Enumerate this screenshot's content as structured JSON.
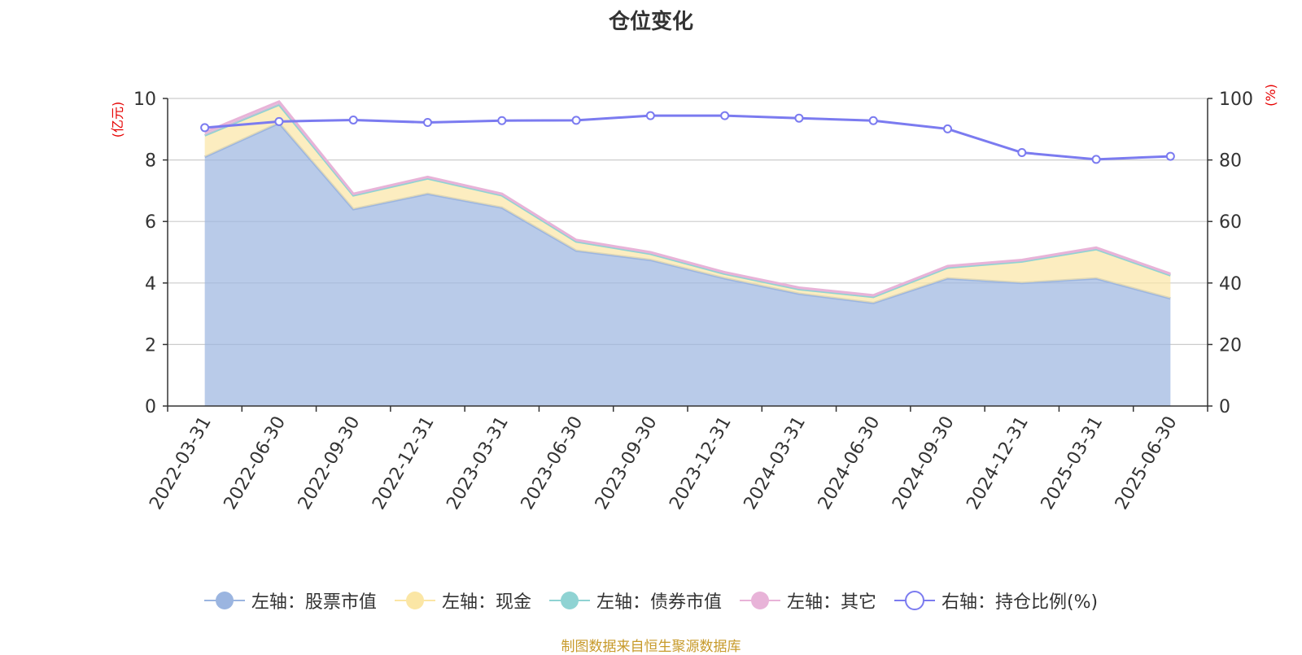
{
  "chart_data": {
    "type": "area",
    "title": "仓位变化",
    "left_axis_unit": "(亿元)",
    "right_axis_unit": "(%)",
    "categories": [
      "2022-03-31",
      "2022-06-30",
      "2022-09-30",
      "2022-12-31",
      "2023-03-31",
      "2023-06-30",
      "2023-09-30",
      "2023-12-31",
      "2024-03-31",
      "2024-06-30",
      "2024-09-30",
      "2024-12-31",
      "2025-03-31",
      "2025-06-30"
    ],
    "ylim_left": [
      0,
      10
    ],
    "yticks_left": [
      "0",
      "2",
      "4",
      "6",
      "8",
      "10"
    ],
    "ylim_right": [
      0,
      100
    ],
    "yticks_right": [
      "0",
      "20",
      "40",
      "60",
      "80",
      "100"
    ],
    "grid": true,
    "legend_position": "bottom",
    "series": [
      {
        "name": "左轴：股票市值",
        "axis": "left",
        "kind": "stacked-area",
        "color": "#9bb5e0",
        "values": [
          8.1,
          9.2,
          6.4,
          6.9,
          6.45,
          5.05,
          4.75,
          4.15,
          3.65,
          3.35,
          4.15,
          4.0,
          4.15,
          3.5
        ]
      },
      {
        "name": "左轴：现金",
        "axis": "left",
        "kind": "stacked-area",
        "color": "#fbe6a5",
        "values": [
          0.7,
          0.6,
          0.45,
          0.5,
          0.4,
          0.3,
          0.2,
          0.15,
          0.15,
          0.2,
          0.35,
          0.7,
          0.95,
          0.75
        ]
      },
      {
        "name": "左轴：债券市值",
        "axis": "left",
        "kind": "stacked-area",
        "color": "#8fd3d3",
        "values": [
          0,
          0,
          0,
          0,
          0,
          0,
          0,
          0,
          0,
          0,
          0,
          0,
          0,
          0
        ]
      },
      {
        "name": "左轴：其它",
        "axis": "left",
        "kind": "stacked-area",
        "color": "#e8b3d8",
        "values": [
          0.1,
          0.1,
          0.05,
          0.05,
          0.05,
          0.05,
          0.05,
          0.05,
          0.05,
          0.05,
          0.05,
          0.05,
          0.05,
          0.05
        ]
      },
      {
        "name": "右轴：持仓比例(%)",
        "axis": "right",
        "kind": "line",
        "color": "#7b7bf0",
        "values": [
          90.5,
          92.5,
          93.0,
          92.2,
          92.8,
          92.9,
          94.4,
          94.4,
          93.6,
          92.8,
          90.1,
          82.4,
          80.2,
          81.2
        ]
      }
    ]
  },
  "source_note": "制图数据来自恒生聚源数据库"
}
